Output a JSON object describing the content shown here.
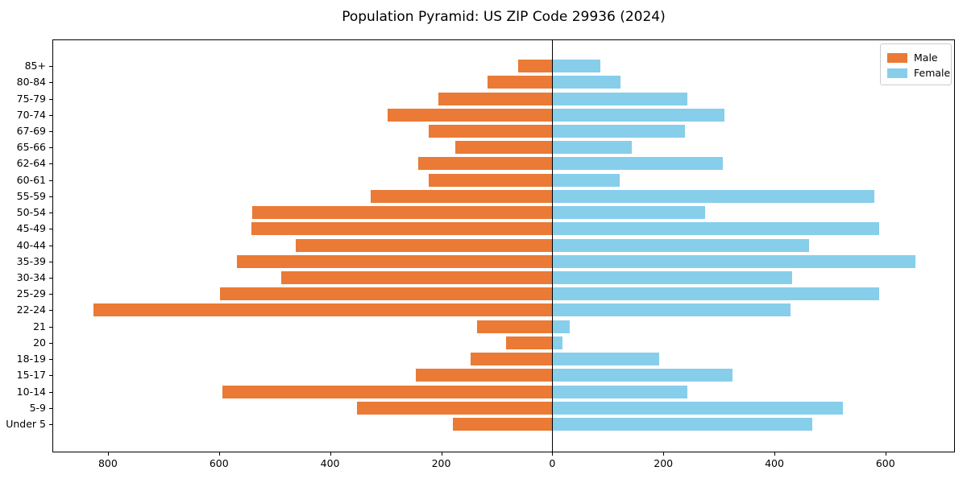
{
  "title": "Population Pyramid: US ZIP Code 29936 (2024)",
  "legend": {
    "male_label": "Male",
    "female_label": "Female",
    "position": "upper right"
  },
  "colors": {
    "male": "#EA7A35",
    "female": "#87CEEB",
    "zero_line": "#000000",
    "axis": "#000000",
    "legend_border": "#cccccc"
  },
  "chart_data": {
    "type": "bar",
    "subtype": "population-pyramid",
    "orientation": "horizontal",
    "title": "Population Pyramid: US ZIP Code 29936 (2024)",
    "categories_top_to_bottom": [
      "85+",
      "80-84",
      "75-79",
      "70-74",
      "67-69",
      "65-66",
      "62-64",
      "60-61",
      "55-59",
      "50-54",
      "45-49",
      "40-44",
      "35-39",
      "30-34",
      "25-29",
      "22-24",
      "21",
      "20",
      "18-19",
      "15-17",
      "10-14",
      "5-9",
      "Under 5"
    ],
    "series": [
      {
        "name": "Male",
        "side": "left",
        "color": "#EA7A35",
        "values": [
          62,
          116,
          205,
          297,
          223,
          174,
          241,
          222,
          327,
          540,
          542,
          462,
          568,
          488,
          599,
          826,
          136,
          83,
          147,
          246,
          594,
          351,
          179
        ]
      },
      {
        "name": "Female",
        "side": "right",
        "color": "#87CEEB",
        "values": [
          86,
          123,
          243,
          310,
          239,
          144,
          307,
          121,
          580,
          276,
          588,
          463,
          654,
          432,
          589,
          429,
          32,
          18,
          192,
          325,
          244,
          523,
          468
        ]
      }
    ],
    "xlim": [
      -900,
      725
    ],
    "x_tick_values": [
      -800,
      -600,
      -400,
      -200,
      0,
      200,
      400,
      600
    ],
    "x_tick_labels": [
      "800",
      "600",
      "400",
      "200",
      "0",
      "200",
      "400",
      "600"
    ],
    "grid": false,
    "zero_line": true,
    "legend_position": "upper right"
  }
}
